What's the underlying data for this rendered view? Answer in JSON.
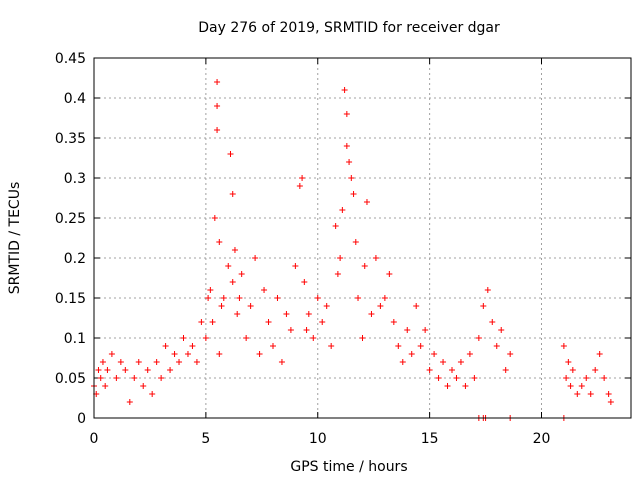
{
  "chart_data": {
    "type": "scatter",
    "title": "Day 276 of 2019, SRMTID for receiver dgar",
    "xlabel": "GPS time / hours",
    "ylabel": "SRMTID / TECUs",
    "xlim": [
      0,
      24
    ],
    "ylim": [
      0,
      0.45
    ],
    "x_ticks": [
      0,
      5,
      10,
      15,
      20
    ],
    "x_tick_labels": [
      "0",
      "5",
      "10",
      "15",
      "20"
    ],
    "y_ticks": [
      0,
      0.05,
      0.1,
      0.15,
      0.2,
      0.25,
      0.3,
      0.35,
      0.4,
      0.45
    ],
    "y_tick_labels": [
      "0",
      "0.05",
      "0.1",
      "0.15",
      "0.2",
      "0.25",
      "0.3",
      "0.35",
      "0.4",
      "0.45"
    ],
    "grid": true,
    "marker": "plus",
    "series_color": "#ff0000",
    "series": [
      {
        "name": "SRMTID",
        "x": [
          0.0,
          0.1,
          0.2,
          0.3,
          0.4,
          0.5,
          0.6,
          0.8,
          1.0,
          1.2,
          1.4,
          1.6,
          1.8,
          2.0,
          2.2,
          2.4,
          2.6,
          2.8,
          3.0,
          3.2,
          3.4,
          3.6,
          3.8,
          4.0,
          4.2,
          4.4,
          4.6,
          4.8,
          5.0,
          5.1,
          5.2,
          5.3,
          5.4,
          5.5,
          5.5,
          5.5,
          5.6,
          5.6,
          5.7,
          5.8,
          6.0,
          6.1,
          6.2,
          6.2,
          6.3,
          6.4,
          6.5,
          6.6,
          6.8,
          7.0,
          7.2,
          7.4,
          7.6,
          7.8,
          8.0,
          8.2,
          8.4,
          8.6,
          8.8,
          9.0,
          9.2,
          9.3,
          9.4,
          9.5,
          9.6,
          9.8,
          10.0,
          10.2,
          10.4,
          10.6,
          10.8,
          10.9,
          11.0,
          11.1,
          11.2,
          11.3,
          11.3,
          11.4,
          11.5,
          11.6,
          11.7,
          11.8,
          12.0,
          12.1,
          12.2,
          12.4,
          12.6,
          12.8,
          13.0,
          13.2,
          13.4,
          13.6,
          13.8,
          14.0,
          14.2,
          14.4,
          14.6,
          14.8,
          15.0,
          15.2,
          15.4,
          15.6,
          15.8,
          16.0,
          16.2,
          16.4,
          16.6,
          16.8,
          17.0,
          17.2,
          17.4,
          17.6,
          17.8,
          18.0,
          18.2,
          18.4,
          18.6,
          21.0,
          21.1,
          21.2,
          21.3,
          21.4,
          21.6,
          21.8,
          22.0,
          22.2,
          22.4,
          22.6,
          22.8,
          23.0,
          23.1
        ],
        "y": [
          0.04,
          0.03,
          0.06,
          0.05,
          0.07,
          0.04,
          0.06,
          0.08,
          0.05,
          0.07,
          0.06,
          0.02,
          0.05,
          0.07,
          0.04,
          0.06,
          0.03,
          0.07,
          0.05,
          0.09,
          0.06,
          0.08,
          0.07,
          0.1,
          0.08,
          0.09,
          0.07,
          0.12,
          0.1,
          0.15,
          0.16,
          0.12,
          0.25,
          0.42,
          0.39,
          0.36,
          0.08,
          0.22,
          0.14,
          0.15,
          0.19,
          0.33,
          0.28,
          0.17,
          0.21,
          0.13,
          0.15,
          0.18,
          0.1,
          0.14,
          0.2,
          0.08,
          0.16,
          0.12,
          0.09,
          0.15,
          0.07,
          0.13,
          0.11,
          0.19,
          0.29,
          0.3,
          0.17,
          0.11,
          0.13,
          0.1,
          0.15,
          0.12,
          0.14,
          0.09,
          0.24,
          0.18,
          0.2,
          0.26,
          0.41,
          0.38,
          0.34,
          0.32,
          0.3,
          0.28,
          0.22,
          0.15,
          0.1,
          0.19,
          0.27,
          0.13,
          0.2,
          0.14,
          0.15,
          0.18,
          0.12,
          0.09,
          0.07,
          0.11,
          0.08,
          0.14,
          0.09,
          0.11,
          0.06,
          0.08,
          0.05,
          0.07,
          0.04,
          0.06,
          0.05,
          0.07,
          0.04,
          0.08,
          0.05,
          0.1,
          0.14,
          0.16,
          0.12,
          0.09,
          0.11,
          0.06,
          0.08,
          0.09,
          0.05,
          0.07,
          0.04,
          0.06,
          0.03,
          0.04,
          0.05,
          0.03,
          0.06,
          0.08,
          0.05,
          0.03,
          0.02
        ],
        "markers_at_zero_x": [
          17.2,
          17.4,
          17.5,
          18.6,
          21.0
        ]
      }
    ]
  }
}
